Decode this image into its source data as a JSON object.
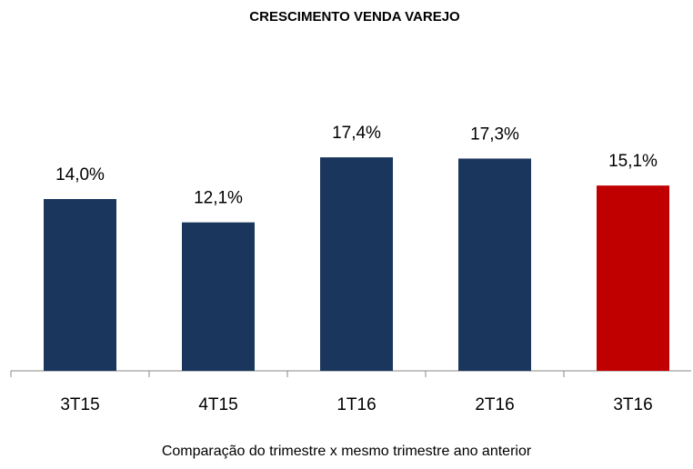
{
  "chart_data": {
    "type": "bar",
    "title": "CRESCIMENTO VENDA VAREJO",
    "categories": [
      "3T15",
      "4T15",
      "1T16",
      "2T16",
      "3T16"
    ],
    "values": [
      14.0,
      12.1,
      17.4,
      17.3,
      15.1
    ],
    "value_labels": [
      "14,0%",
      "12,1%",
      "17,4%",
      "17,3%",
      "15,1%"
    ],
    "colors": [
      "#1b365d",
      "#1b365d",
      "#1b365d",
      "#1b365d",
      "#c00000"
    ],
    "ylim": [
      0,
      22
    ],
    "caption": "Comparação do trimestre x mesmo trimestre ano anterior"
  }
}
